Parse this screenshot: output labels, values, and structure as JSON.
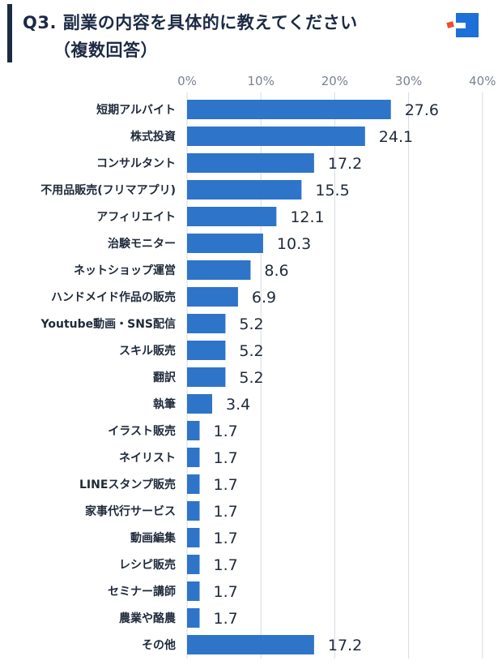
{
  "title": {
    "line1": "Q3. 副業の内容を具体的に教えてください",
    "line2": "（複数回答）"
  },
  "colors": {
    "bar": "#2e74c9",
    "title": "#1c2a44",
    "logo_blue": "#1e6fd9",
    "logo_red": "#f04e30",
    "grid": "#d7dbe2",
    "axis_text": "#7a8391"
  },
  "chart_data": {
    "type": "bar",
    "orientation": "horizontal",
    "xlim": [
      0,
      40
    ],
    "x_ticks": [
      "0%",
      "10%",
      "20%",
      "30%",
      "40%"
    ],
    "grid": true,
    "categories": [
      "短期アルバイト",
      "株式投資",
      "コンサルタント",
      "不用品販売(フリマアプリ)",
      "アフィリエイト",
      "治験モニター",
      "ネットショップ運営",
      "ハンドメイド作品の販売",
      "Youtube動画・SNS配信",
      "スキル販売",
      "翻訳",
      "執筆",
      "イラスト販売",
      "ネイリスト",
      "LINEスタンプ販売",
      "家事代行サービス",
      "動画編集",
      "レシピ販売",
      "セミナー講師",
      "農業や酪農",
      "その他"
    ],
    "values": [
      27.6,
      24.1,
      17.2,
      15.5,
      12.1,
      10.3,
      8.6,
      6.9,
      5.2,
      5.2,
      5.2,
      3.4,
      1.7,
      1.7,
      1.7,
      1.7,
      1.7,
      1.7,
      1.7,
      1.7,
      17.2
    ],
    "value_labels": [
      "27.6",
      "24.1",
      "17.2",
      "15.5",
      "12.1",
      "10.3",
      "8.6",
      "6.9",
      "5.2",
      "5.2",
      "5.2",
      "3.4",
      "1.7",
      "1.7",
      "1.7",
      "1.7",
      "1.7",
      "1.7",
      "1.7",
      "1.7",
      "17.2"
    ]
  }
}
